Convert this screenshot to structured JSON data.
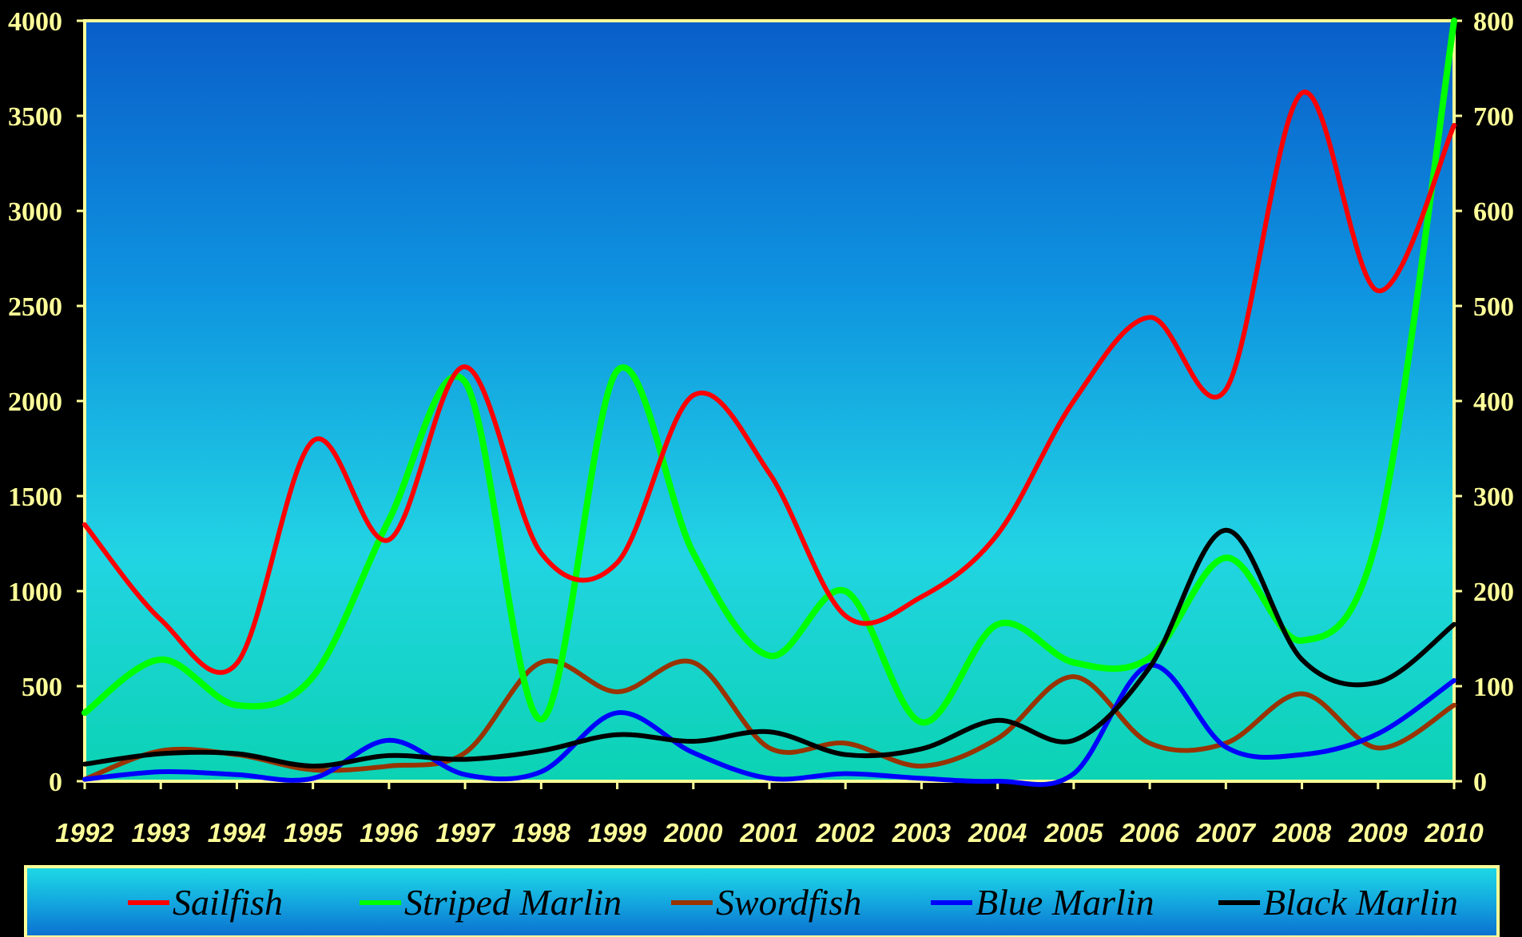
{
  "chart_data": {
    "type": "line",
    "title": "",
    "xlabel": "",
    "ylabel": "",
    "x": [
      "1992",
      "1993",
      "1994",
      "1995",
      "1996",
      "1997",
      "1998",
      "1999",
      "2000",
      "2001",
      "2002",
      "2003",
      "2004",
      "2005",
      "2006",
      "2007",
      "2008",
      "2009",
      "2010"
    ],
    "y_left": {
      "ticks": [
        "0",
        "500",
        "1000",
        "1500",
        "2000",
        "2500",
        "3000",
        "3500",
        "4000"
      ],
      "ylim": [
        0,
        4000
      ]
    },
    "y_right": {
      "ticks": [
        "0",
        "100",
        "200",
        "300",
        "400",
        "500",
        "600",
        "700",
        "800"
      ],
      "ylim": [
        0,
        800
      ]
    },
    "series": [
      {
        "name": "Sailfish",
        "axis": "left",
        "color": "#ff0000",
        "values": [
          1350,
          850,
          620,
          1790,
          1270,
          2180,
          1200,
          1150,
          2030,
          1620,
          870,
          970,
          1300,
          2000,
          2440,
          2060,
          3620,
          2580,
          3450
        ]
      },
      {
        "name": "Striped Marlin",
        "axis": "right",
        "color": "#00ff00",
        "values": [
          72,
          128,
          80,
          110,
          275,
          420,
          65,
          432,
          240,
          132,
          200,
          62,
          165,
          125,
          130,
          235,
          148,
          260,
          800
        ]
      },
      {
        "name": "Swordfish",
        "axis": "right",
        "color": "#993300",
        "values": [
          2,
          32,
          28,
          12,
          16,
          30,
          125,
          94,
          125,
          35,
          40,
          16,
          45,
          110,
          40,
          40,
          92,
          35,
          80
        ]
      },
      {
        "name": "Blue Marlin",
        "axis": "right",
        "color": "#0000ff",
        "values": [
          2,
          10,
          7,
          3,
          43,
          7,
          10,
          72,
          30,
          3,
          8,
          3,
          0,
          8,
          122,
          36,
          28,
          50,
          106
        ]
      },
      {
        "name": "Black Marlin",
        "axis": "right",
        "color": "#000000",
        "values": [
          18,
          29,
          29,
          16,
          27,
          23,
          32,
          49,
          42,
          52,
          28,
          34,
          64,
          43,
          120,
          264,
          128,
          104,
          165
        ]
      }
    ],
    "legend_position": "bottom",
    "grid": false
  }
}
